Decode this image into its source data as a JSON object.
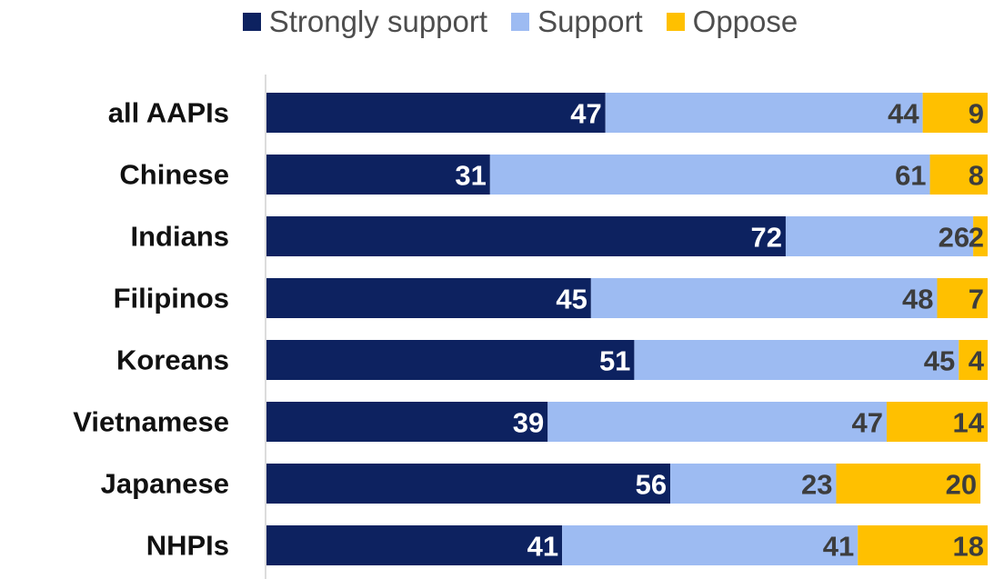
{
  "chart_data": {
    "type": "bar",
    "orientation": "horizontal",
    "stacked": true,
    "categories": [
      "all AAPIs",
      "Chinese",
      "Indians",
      "Filipinos",
      "Koreans",
      "Vietnamese",
      "Japanese",
      "NHPIs"
    ],
    "series": [
      {
        "name": "Strongly support",
        "color": "#0d2260",
        "label_color": "#ffffff",
        "values": [
          47,
          31,
          72,
          45,
          51,
          39,
          56,
          41
        ]
      },
      {
        "name": "Support",
        "color": "#9dbbf2",
        "label_color": "#3d3d3d",
        "values": [
          44,
          61,
          26,
          48,
          45,
          47,
          23,
          41
        ]
      },
      {
        "name": "Oppose",
        "color": "#ffc000",
        "label_color": "#3d3d3d",
        "values": [
          9,
          8,
          2,
          7,
          4,
          14,
          20,
          18
        ]
      }
    ],
    "xlim": [
      0,
      100
    ],
    "grid": false,
    "legend_position": "top"
  }
}
